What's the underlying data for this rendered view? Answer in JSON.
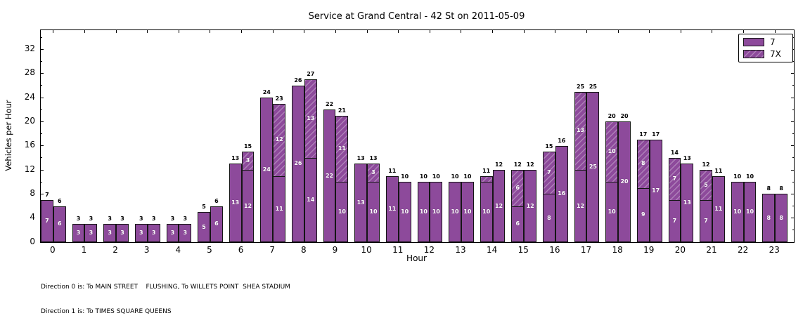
{
  "title": "Service at Grand Central - 42 St on 2011-05-09",
  "axes": {
    "xlabel": "Hour",
    "ylabel": "Vehicles per Hour",
    "yticks": [
      0,
      4,
      8,
      12,
      16,
      20,
      24,
      28,
      32
    ],
    "yminor": [
      2,
      6,
      10,
      14,
      18,
      22,
      26,
      30,
      34
    ],
    "ylim": [
      0,
      35.2
    ],
    "xlim": [
      -0.4,
      23.6
    ],
    "grid": false
  },
  "legend": {
    "position": "upper-right",
    "items": [
      {
        "label": "7",
        "hatched": false
      },
      {
        "label": "7X",
        "hatched": true
      }
    ]
  },
  "footnotes": [
    "Direction 0 is: To MAIN STREET    FLUSHING, To WILLETS POINT  SHEA STADIUM",
    "Direction 1 is: To TIMES SQUARE QUEENS"
  ],
  "colors": {
    "bar_fill": "#8d4a9b",
    "bar_edge": "#151515",
    "background": "#ffffff"
  },
  "chart_data": {
    "type": "bar",
    "stacked": true,
    "grouped": "two bars per hour: direction 0 (left), direction 1 (right)",
    "x": [
      0,
      1,
      2,
      3,
      4,
      5,
      6,
      7,
      8,
      9,
      10,
      11,
      12,
      13,
      14,
      15,
      16,
      17,
      18,
      19,
      20,
      21,
      22,
      23
    ],
    "series": [
      {
        "name": "7",
        "direction": 0,
        "values": [
          7,
          3,
          3,
          3,
          3,
          5,
          13,
          24,
          26,
          22,
          13,
          11,
          10,
          10,
          10,
          6,
          8,
          12,
          10,
          9,
          7,
          7,
          10,
          8
        ]
      },
      {
        "name": "7X",
        "direction": 0,
        "values": [
          0,
          0,
          0,
          0,
          0,
          0,
          0,
          0,
          0,
          0,
          0,
          0,
          0,
          0,
          1,
          6,
          7,
          13,
          10,
          8,
          7,
          5,
          0,
          0
        ]
      },
      {
        "name": "7",
        "direction": 1,
        "values": [
          6,
          3,
          3,
          3,
          3,
          6,
          12,
          11,
          14,
          10,
          10,
          10,
          10,
          10,
          12,
          12,
          16,
          25,
          20,
          17,
          13,
          11,
          10,
          8
        ]
      },
      {
        "name": "7X",
        "direction": 1,
        "values": [
          0,
          0,
          0,
          0,
          0,
          0,
          3,
          12,
          13,
          11,
          3,
          0,
          0,
          0,
          0,
          0,
          0,
          0,
          0,
          0,
          0,
          0,
          0,
          0
        ]
      }
    ],
    "totals_direction0": [
      7,
      3,
      3,
      3,
      3,
      5,
      13,
      24,
      26,
      22,
      13,
      11,
      10,
      10,
      11,
      12,
      15,
      25,
      20,
      17,
      14,
      12,
      10,
      8
    ],
    "totals_direction1": [
      6,
      3,
      3,
      3,
      3,
      6,
      15,
      23,
      27,
      21,
      13,
      10,
      10,
      10,
      12,
      12,
      16,
      25,
      20,
      17,
      13,
      11,
      10,
      8
    ]
  }
}
